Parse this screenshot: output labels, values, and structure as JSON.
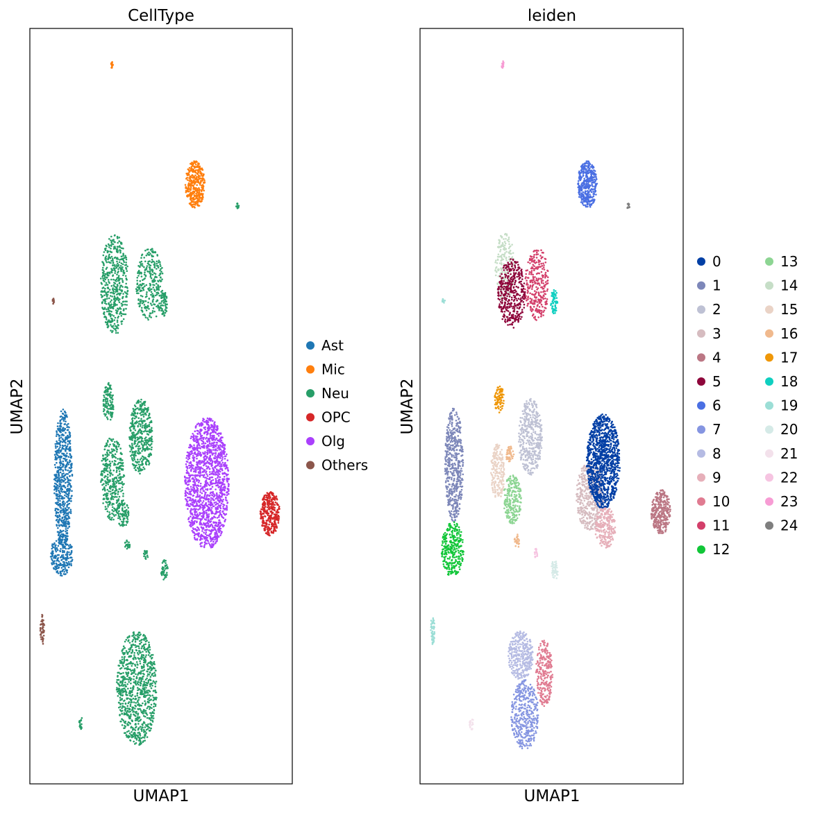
{
  "chart_data": [
    {
      "type": "scatter",
      "title": "CellType",
      "xlabel": "UMAP1",
      "ylabel": "UMAP2",
      "ticks": "none",
      "legend_location": "right",
      "legend": [
        {
          "label": "Ast",
          "color": "#1f77b4"
        },
        {
          "label": "Mic",
          "color": "#ff7f0e"
        },
        {
          "label": "Neu",
          "color": "#279e68"
        },
        {
          "label": "OPC",
          "color": "#d62728"
        },
        {
          "label": "Olg",
          "color": "#aa40fc"
        },
        {
          "label": "Others",
          "color": "#8c564b"
        }
      ]
    },
    {
      "type": "scatter",
      "title": "leiden",
      "xlabel": "UMAP1",
      "ylabel": "UMAP2",
      "ticks": "none",
      "legend_location": "right",
      "legend": [
        {
          "label": "0",
          "color": "#023fa5"
        },
        {
          "label": "1",
          "color": "#7d87b9"
        },
        {
          "label": "2",
          "color": "#bec1d4"
        },
        {
          "label": "3",
          "color": "#d6bcc0"
        },
        {
          "label": "4",
          "color": "#bb7784"
        },
        {
          "label": "5",
          "color": "#8e063b"
        },
        {
          "label": "6",
          "color": "#4a6fe3"
        },
        {
          "label": "7",
          "color": "#8595e1"
        },
        {
          "label": "8",
          "color": "#b5bbe3"
        },
        {
          "label": "9",
          "color": "#e6afb9"
        },
        {
          "label": "10",
          "color": "#e07b91"
        },
        {
          "label": "11",
          "color": "#d33f6a"
        },
        {
          "label": "12",
          "color": "#11c638"
        },
        {
          "label": "13",
          "color": "#8dd593"
        },
        {
          "label": "14",
          "color": "#c6dec7"
        },
        {
          "label": "15",
          "color": "#ead3c6"
        },
        {
          "label": "16",
          "color": "#f0b98d"
        },
        {
          "label": "17",
          "color": "#ef9708"
        },
        {
          "label": "18",
          "color": "#0fcfc0"
        },
        {
          "label": "19",
          "color": "#9cded6"
        },
        {
          "label": "20",
          "color": "#d5eae7"
        },
        {
          "label": "21",
          "color": "#f3e1eb"
        },
        {
          "label": "22",
          "color": "#f6c4e1"
        },
        {
          "label": "23",
          "color": "#f79cd4"
        },
        {
          "label": "24",
          "color": "#7f7f7f"
        }
      ]
    }
  ]
}
